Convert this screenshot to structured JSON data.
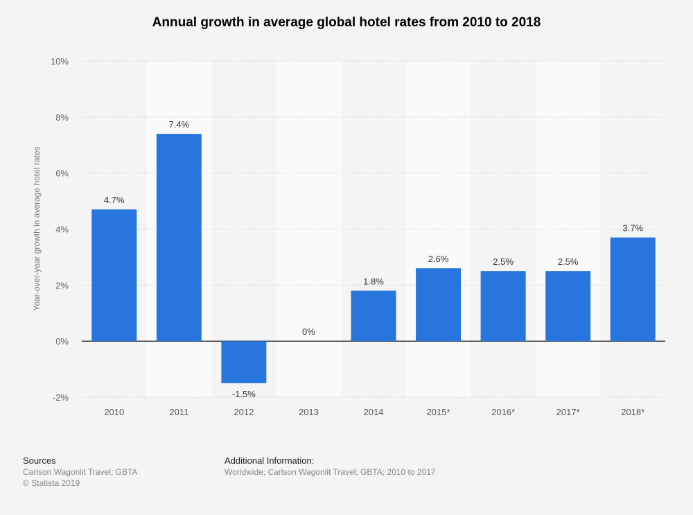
{
  "chart_data": {
    "type": "bar",
    "title": "Annual growth in average global hotel rates from 2010 to 2018",
    "xlabel": "",
    "ylabel": "Year-over-year growth in average hotel rates",
    "categories": [
      "2010",
      "2011",
      "2012",
      "2013",
      "2014",
      "2015*",
      "2016*",
      "2017*",
      "2018*"
    ],
    "values": [
      4.7,
      7.4,
      -1.5,
      0,
      1.8,
      2.6,
      2.5,
      2.5,
      3.7
    ],
    "data_labels": [
      "4.7%",
      "7.4%",
      "-1.5%",
      "0%",
      "1.8%",
      "2.6%",
      "2.5%",
      "2.5%",
      "3.7%"
    ],
    "ylim": [
      -2,
      10
    ],
    "yticks": [
      -2,
      0,
      2,
      4,
      6,
      8,
      10
    ],
    "ytick_labels": [
      "-2%",
      "0%",
      "2%",
      "4%",
      "6%",
      "8%",
      "10%"
    ],
    "grid": true,
    "bar_color": "#2876dd"
  },
  "footer": {
    "sources_heading": "Sources",
    "sources_text": "Carlson Wagonlit Travel; GBTA",
    "copyright": "© Statista 2019",
    "additional_heading": "Additional Information:",
    "additional_text": "Worldwide; Carlson Wagonlit Travel; GBTA; 2010 to 2017"
  }
}
